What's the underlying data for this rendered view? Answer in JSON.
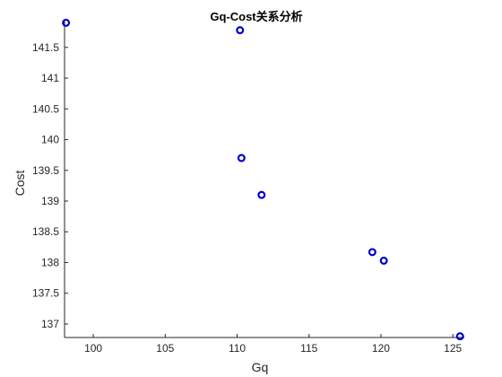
{
  "chart_data": {
    "type": "scatter",
    "title": "Gq-Cost关系分析",
    "xlabel": "Gq",
    "ylabel": "Cost",
    "xlim": [
      98.0,
      125.8
    ],
    "ylim": [
      136.78,
      141.95
    ],
    "xticks": [
      100,
      105,
      110,
      115,
      120,
      125
    ],
    "xtick_labels": [
      "100",
      "105",
      "110",
      "115",
      "120",
      "125"
    ],
    "yticks": [
      137,
      137.5,
      138,
      138.5,
      139,
      139.5,
      140,
      140.5,
      141,
      141.5
    ],
    "ytick_labels": [
      "137",
      "137.5",
      "138",
      "138.5",
      "139",
      "139.5",
      "140",
      "140.5",
      "141",
      "141.5"
    ],
    "grid": false,
    "marker": "circle",
    "marker_color": "#0000cc",
    "series": [
      {
        "x": [
          98.1,
          110.2,
          110.3,
          111.7,
          119.4,
          120.2,
          125.5
        ],
        "y": [
          141.9,
          141.78,
          139.7,
          139.1,
          138.17,
          138.03,
          136.8
        ]
      }
    ]
  }
}
